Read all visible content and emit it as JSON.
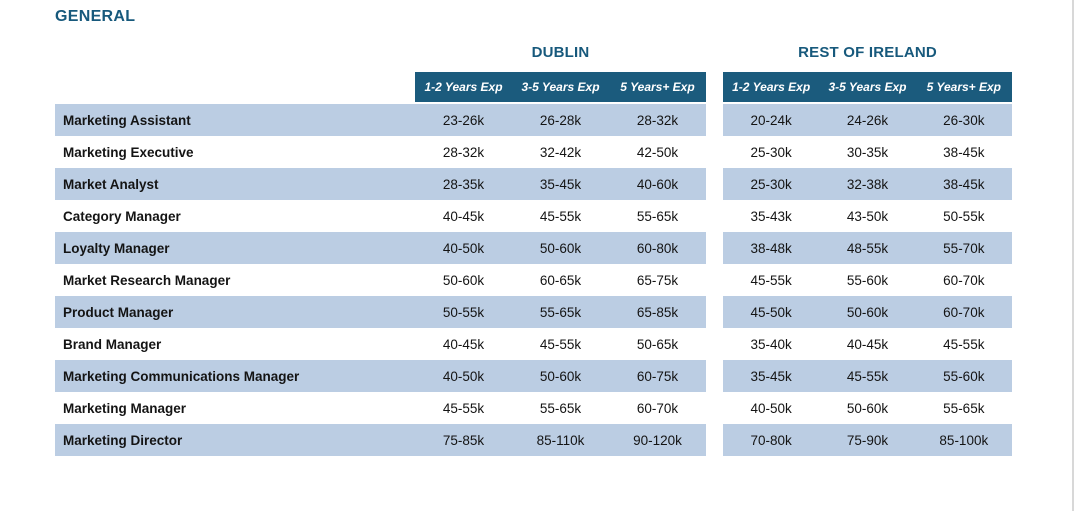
{
  "page": {
    "title": "GENERAL",
    "colors": {
      "accent_bar": "#1B5B7D",
      "heading_text": "#17597C",
      "row_band": "#BBCDE3",
      "header_text": "#FFFFFF",
      "body_text": "#141414"
    }
  },
  "groups": [
    {
      "name": "DUBLIN",
      "columns": [
        "1-2 Years Exp",
        "3-5 Years Exp",
        "5 Years+ Exp"
      ]
    },
    {
      "name": "REST OF IRELAND",
      "columns": [
        "1-2 Years Exp",
        "3-5 Years Exp",
        "5 Years+ Exp"
      ]
    }
  ],
  "table": {
    "rows": [
      {
        "role": "Marketing Assistant",
        "dublin": [
          "23-26k",
          "26-28k",
          "28-32k"
        ],
        "rest_of_ireland": [
          "20-24k",
          "24-26k",
          "26-30k"
        ]
      },
      {
        "role": "Marketing Executive",
        "dublin": [
          "28-32k",
          "32-42k",
          "42-50k"
        ],
        "rest_of_ireland": [
          "25-30k",
          "30-35k",
          "38-45k"
        ]
      },
      {
        "role": "Market Analyst",
        "dublin": [
          "28-35k",
          "35-45k",
          "40-60k"
        ],
        "rest_of_ireland": [
          "25-30k",
          "32-38k",
          "38-45k"
        ]
      },
      {
        "role": "Category Manager",
        "dublin": [
          "40-45k",
          "45-55k",
          "55-65k"
        ],
        "rest_of_ireland": [
          "35-43k",
          "43-50k",
          "50-55k"
        ]
      },
      {
        "role": "Loyalty Manager",
        "dublin": [
          "40-50k",
          "50-60k",
          "60-80k"
        ],
        "rest_of_ireland": [
          "38-48k",
          "48-55k",
          "55-70k"
        ]
      },
      {
        "role": "Market Research Manager",
        "dublin": [
          "50-60k",
          "60-65k",
          "65-75k"
        ],
        "rest_of_ireland": [
          "45-55k",
          "55-60k",
          "60-70k"
        ]
      },
      {
        "role": "Product Manager",
        "dublin": [
          "50-55k",
          "55-65k",
          "65-85k"
        ],
        "rest_of_ireland": [
          "45-50k",
          "50-60k",
          "60-70k"
        ]
      },
      {
        "role": "Brand Manager",
        "dublin": [
          "40-45k",
          "45-55k",
          "50-65k"
        ],
        "rest_of_ireland": [
          "35-40k",
          "40-45k",
          "45-55k"
        ]
      },
      {
        "role": "Marketing Communications Manager",
        "dublin": [
          "40-50k",
          "50-60k",
          "60-75k"
        ],
        "rest_of_ireland": [
          "35-45k",
          "45-55k",
          "55-60k"
        ]
      },
      {
        "role": "Marketing Manager",
        "dublin": [
          "45-55k",
          "55-65k",
          "60-70k"
        ],
        "rest_of_ireland": [
          "40-50k",
          "50-60k",
          "55-65k"
        ]
      },
      {
        "role": "Marketing Director",
        "dublin": [
          "75-85k",
          "85-110k",
          "90-120k"
        ],
        "rest_of_ireland": [
          "70-80k",
          "75-90k",
          "85-100k"
        ]
      }
    ]
  }
}
